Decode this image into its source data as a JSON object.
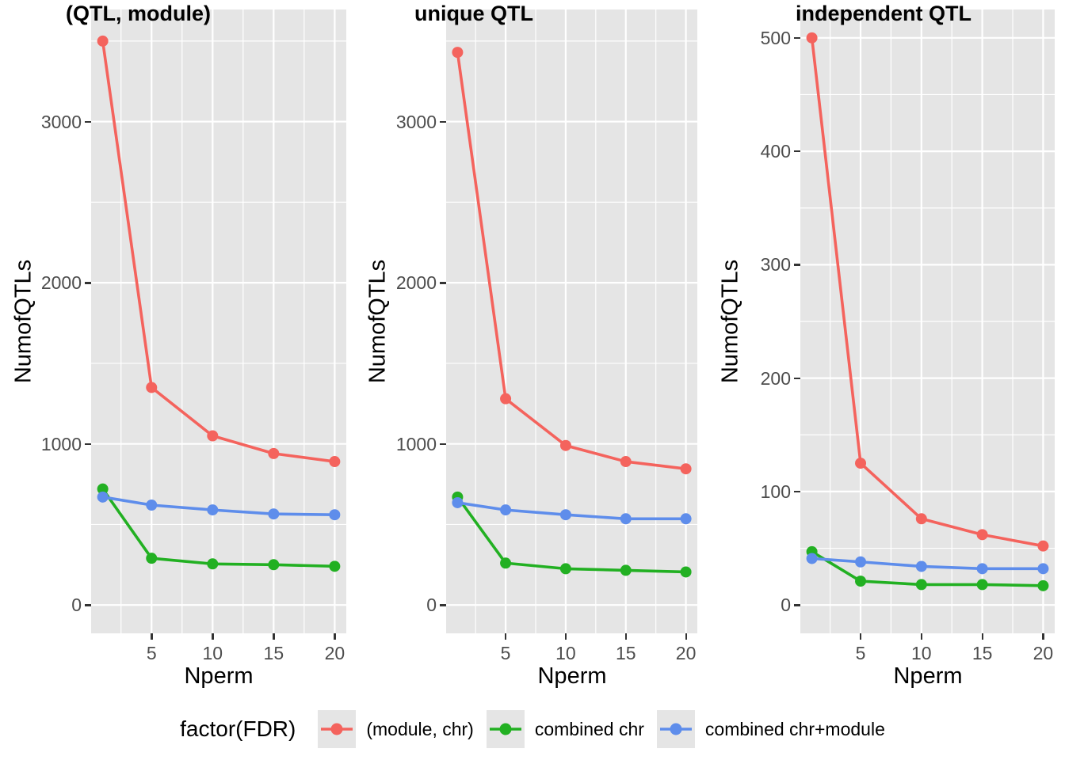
{
  "chart_data": {
    "type": "line",
    "x": [
      1,
      5,
      10,
      15,
      20
    ],
    "xticks": [
      5,
      10,
      15,
      20
    ],
    "xminor": [
      2.5,
      7.5,
      12.5,
      17.5
    ],
    "x_range": [
      0.05,
      20.95
    ],
    "xlabel": "Nperm",
    "ylabel": "NumofQTLs",
    "grid": true,
    "panel_background": "#E5E5E5",
    "gridline_color": "#FFFFFF",
    "tick_label_color": "#4D4D4D",
    "panels": [
      {
        "title": "(QTL, module)",
        "ylim": [
          -176,
          3696
        ],
        "yticks": [
          0,
          1000,
          2000,
          3000
        ],
        "yminor": [
          500,
          1500,
          2500,
          3500
        ],
        "series": [
          {
            "name": "(module, chr)",
            "color": "#F4635D",
            "values": [
              3500,
              1350,
              1050,
              940,
              890
            ]
          },
          {
            "name": "combined chr",
            "color": "#22B022",
            "values": [
              720,
              290,
              255,
              250,
              240
            ]
          },
          {
            "name": "combined chr+module",
            "color": "#5E8DEB",
            "values": [
              670,
              620,
              590,
              565,
              560
            ]
          }
        ]
      },
      {
        "title": "unique QTL",
        "ylim": [
          -176,
          3696
        ],
        "yticks": [
          0,
          1000,
          2000,
          3000
        ],
        "yminor": [
          500,
          1500,
          2500,
          3500
        ],
        "series": [
          {
            "name": "(module, chr)",
            "color": "#F4635D",
            "values": [
              3430,
              1280,
              990,
              890,
              845
            ]
          },
          {
            "name": "combined chr",
            "color": "#22B022",
            "values": [
              670,
              260,
              225,
              215,
              205
            ]
          },
          {
            "name": "combined chr+module",
            "color": "#5E8DEB",
            "values": [
              635,
              590,
              560,
              535,
              535
            ]
          }
        ]
      },
      {
        "title": "independent QTL",
        "ylim": [
          -25,
          525
        ],
        "yticks": [
          0,
          100,
          200,
          300,
          400,
          500
        ],
        "yminor": [
          50,
          150,
          250,
          350,
          450
        ],
        "series": [
          {
            "name": "(module, chr)",
            "color": "#F4635D",
            "values": [
              500,
              125,
              76,
              62,
              52
            ]
          },
          {
            "name": "combined chr",
            "color": "#22B022",
            "values": [
              47,
              21,
              18,
              18,
              17
            ]
          },
          {
            "name": "combined chr+module",
            "color": "#5E8DEB",
            "values": [
              41,
              38,
              34,
              32,
              32
            ]
          }
        ]
      }
    ],
    "legend": {
      "title": "factor(FDR)",
      "position": "bottom",
      "items": [
        {
          "label": "(module, chr)",
          "color": "#F4635D"
        },
        {
          "label": "combined chr",
          "color": "#22B022"
        },
        {
          "label": "combined chr+module",
          "color": "#5E8DEB"
        }
      ]
    }
  }
}
